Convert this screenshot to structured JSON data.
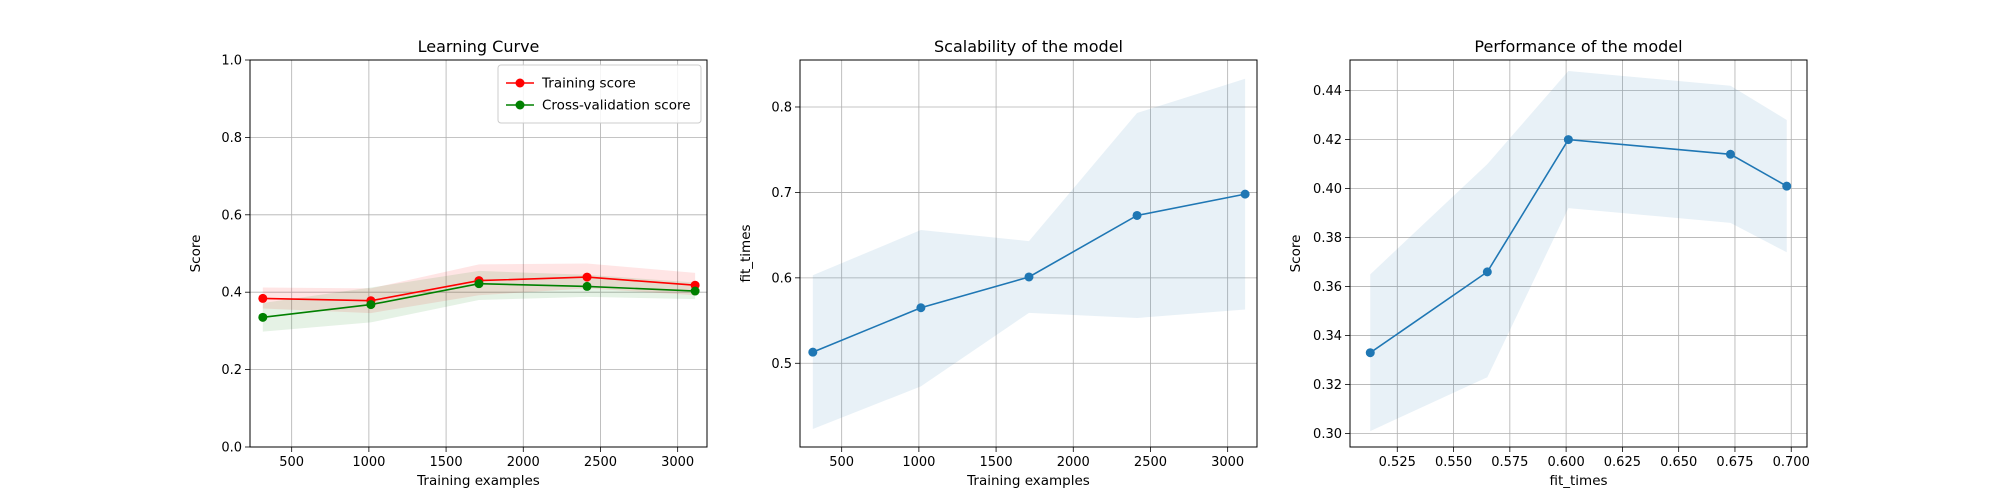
{
  "chart_data": [
    {
      "type": "line",
      "title": "Learning Curve",
      "xlabel": "Training examples",
      "ylabel": "Score",
      "xlim": [
        230,
        3190
      ],
      "ylim": [
        0.0,
        1.0
      ],
      "xticks": [
        500,
        1000,
        1500,
        2000,
        2500,
        3000
      ],
      "yticks": [
        0.0,
        0.2,
        0.4,
        0.6,
        0.8,
        1.0
      ],
      "grid": true,
      "legend": "upper right",
      "x": [
        313,
        1013,
        1713,
        2413,
        3113
      ],
      "series": [
        {
          "name": "Training score",
          "color": "#ff0000",
          "values": [
            0.384,
            0.378,
            0.43,
            0.439,
            0.418
          ],
          "band_lower": [
            0.358,
            0.346,
            0.392,
            0.41,
            0.392
          ],
          "band_upper": [
            0.412,
            0.41,
            0.472,
            0.474,
            0.45
          ]
        },
        {
          "name": "Cross-validation score",
          "color": "#008000",
          "values": [
            0.335,
            0.368,
            0.422,
            0.415,
            0.403
          ],
          "band_lower": [
            0.298,
            0.322,
            0.38,
            0.388,
            0.382
          ],
          "band_upper": [
            0.372,
            0.412,
            0.455,
            0.445,
            0.425
          ]
        }
      ]
    },
    {
      "type": "line",
      "title": "Scalability of the model",
      "xlabel": "Training examples",
      "ylabel": "fit_times",
      "xlim": [
        230,
        3190
      ],
      "ylim": [
        0.402,
        0.855
      ],
      "xticks": [
        500,
        1000,
        1500,
        2000,
        2500,
        3000
      ],
      "yticks": [
        0.5,
        0.6,
        0.7,
        0.8
      ],
      "grid": true,
      "x": [
        313,
        1013,
        1713,
        2413,
        3113
      ],
      "series": [
        {
          "color": "#1f77b4",
          "values": [
            0.513,
            0.565,
            0.601,
            0.673,
            0.698
          ],
          "band_lower": [
            0.423,
            0.473,
            0.559,
            0.553,
            0.563
          ],
          "band_upper": [
            0.603,
            0.656,
            0.643,
            0.793,
            0.833
          ]
        }
      ]
    },
    {
      "type": "line",
      "title": "Performance of the model",
      "xlabel": "fit_times",
      "ylabel": "Score",
      "xlim": [
        0.504,
        0.707
      ],
      "ylim": [
        0.2945,
        0.4525
      ],
      "xticks": [
        0.525,
        0.55,
        0.575,
        0.6,
        0.625,
        0.65,
        0.675,
        0.7
      ],
      "xtick_labels": [
        "0.525",
        "0.550",
        "0.575",
        "0.600",
        "0.625",
        "0.650",
        "0.675",
        "0.700"
      ],
      "yticks": [
        0.3,
        0.32,
        0.34,
        0.36,
        0.38,
        0.4,
        0.42,
        0.44
      ],
      "ytick_labels": [
        "0.30",
        "0.32",
        "0.34",
        "0.36",
        "0.38",
        "0.40",
        "0.42",
        "0.44"
      ],
      "grid": true,
      "x": [
        0.513,
        0.565,
        0.601,
        0.673,
        0.698
      ],
      "series": [
        {
          "color": "#1f77b4",
          "values": [
            0.333,
            0.366,
            0.42,
            0.414,
            0.401
          ],
          "band_lower": [
            0.301,
            0.323,
            0.392,
            0.386,
            0.374
          ],
          "band_upper": [
            0.365,
            0.41,
            0.448,
            0.442,
            0.428
          ]
        }
      ]
    }
  ]
}
